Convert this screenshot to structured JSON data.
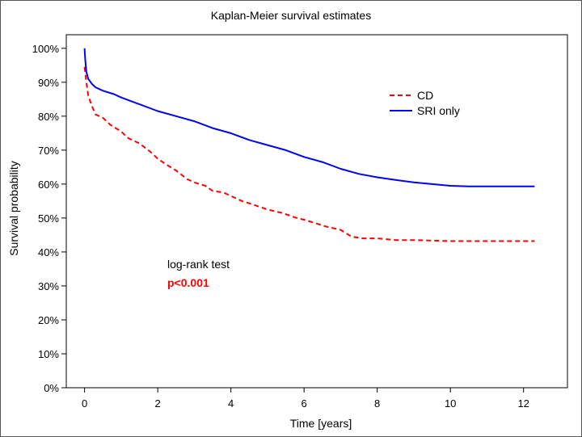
{
  "chart_data": {
    "type": "line",
    "title": "Kaplan-Meier survival estimates",
    "xlabel": "Time [years]",
    "ylabel": "Survival probability",
    "xlim": [
      -0.5,
      13.2
    ],
    "ylim": [
      0,
      1.04
    ],
    "x_ticks": [
      0,
      2,
      4,
      6,
      8,
      10,
      12
    ],
    "x_tick_labels": [
      "0",
      "2",
      "4",
      "6",
      "8",
      "10",
      "12"
    ],
    "y_ticks": [
      0,
      0.1,
      0.2,
      0.3,
      0.4,
      0.5,
      0.6,
      0.7,
      0.8,
      0.9,
      1.0
    ],
    "y_tick_labels": [
      "0%",
      "10%",
      "20%",
      "30%",
      "40%",
      "50%",
      "60%",
      "70%",
      "80%",
      "90%",
      "100%"
    ],
    "grid": false,
    "legend_position": "top-right",
    "series": [
      {
        "name": "CD",
        "color": "#ff0000",
        "dash": true,
        "points": [
          [
            0,
            0.945
          ],
          [
            0.05,
            0.9
          ],
          [
            0.1,
            0.86
          ],
          [
            0.2,
            0.83
          ],
          [
            0.3,
            0.805
          ],
          [
            0.5,
            0.795
          ],
          [
            0.7,
            0.775
          ],
          [
            1.0,
            0.755
          ],
          [
            1.2,
            0.735
          ],
          [
            1.5,
            0.72
          ],
          [
            1.8,
            0.695
          ],
          [
            2.0,
            0.675
          ],
          [
            2.2,
            0.66
          ],
          [
            2.5,
            0.64
          ],
          [
            2.8,
            0.615
          ],
          [
            3.0,
            0.605
          ],
          [
            3.3,
            0.595
          ],
          [
            3.5,
            0.58
          ],
          [
            3.8,
            0.575
          ],
          [
            4.0,
            0.565
          ],
          [
            4.3,
            0.55
          ],
          [
            4.6,
            0.54
          ],
          [
            5.0,
            0.525
          ],
          [
            5.4,
            0.515
          ],
          [
            5.8,
            0.5
          ],
          [
            6.0,
            0.495
          ],
          [
            6.3,
            0.485
          ],
          [
            6.6,
            0.475
          ],
          [
            7.0,
            0.465
          ],
          [
            7.3,
            0.445
          ],
          [
            7.6,
            0.44
          ],
          [
            8.0,
            0.44
          ],
          [
            8.5,
            0.435
          ],
          [
            9.0,
            0.435
          ],
          [
            10.0,
            0.432
          ],
          [
            11.0,
            0.432
          ],
          [
            12.3,
            0.432
          ]
        ]
      },
      {
        "name": "SRI only",
        "color": "#0000ff",
        "dash": false,
        "points": [
          [
            0,
            1.0
          ],
          [
            0.02,
            0.965
          ],
          [
            0.05,
            0.93
          ],
          [
            0.1,
            0.91
          ],
          [
            0.2,
            0.895
          ],
          [
            0.3,
            0.885
          ],
          [
            0.5,
            0.875
          ],
          [
            0.8,
            0.865
          ],
          [
            1.0,
            0.855
          ],
          [
            1.5,
            0.835
          ],
          [
            2.0,
            0.815
          ],
          [
            2.5,
            0.8
          ],
          [
            3.0,
            0.785
          ],
          [
            3.5,
            0.765
          ],
          [
            4.0,
            0.75
          ],
          [
            4.5,
            0.73
          ],
          [
            5.0,
            0.715
          ],
          [
            5.5,
            0.7
          ],
          [
            6.0,
            0.68
          ],
          [
            6.5,
            0.665
          ],
          [
            7.0,
            0.645
          ],
          [
            7.5,
            0.63
          ],
          [
            8.0,
            0.62
          ],
          [
            8.5,
            0.612
          ],
          [
            9.0,
            0.605
          ],
          [
            9.5,
            0.6
          ],
          [
            10.0,
            0.595
          ],
          [
            10.5,
            0.593
          ],
          [
            11.0,
            0.593
          ],
          [
            12.0,
            0.593
          ],
          [
            12.3,
            0.593
          ]
        ]
      }
    ],
    "annotations": {
      "test_label": "log-rank test",
      "p_value": "p<0.001",
      "p_color": "#ff0000"
    }
  }
}
